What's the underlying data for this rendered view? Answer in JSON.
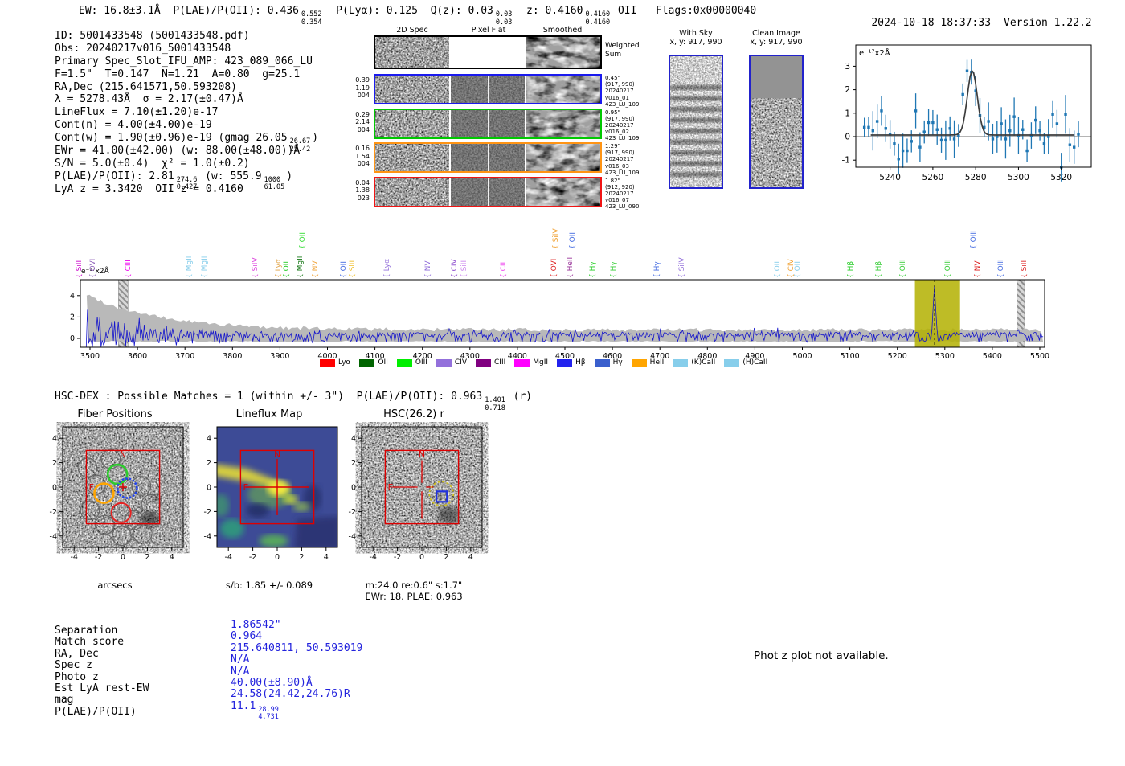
{
  "meta": {
    "timestamp": "2024-10-18 18:37:33",
    "version": "Version 1.22.2"
  },
  "header": {
    "segments": [
      {
        "t": "EW: 16.8±3.1Å  P(LAE)/P(OII): 0.436"
      },
      {
        "frac": [
          "0.552",
          "0.354"
        ]
      },
      {
        "t": "  P(Lyα): 0.125  Q(z): 0.03"
      },
      {
        "frac": [
          "0.03",
          "0.03"
        ]
      },
      {
        "t": "  z: 0.4160"
      },
      {
        "frac": [
          "0.4160",
          "0.4160"
        ]
      },
      {
        "t": " OII   Flags:0x00000040"
      }
    ]
  },
  "info_lines": [
    [
      {
        "t": "ID: 5001433548 (5001433548.pdf)"
      }
    ],
    [
      {
        "t": "Obs: 20240217v016_5001433548"
      }
    ],
    [
      {
        "t": "Primary Spec_Slot_IFU_AMP: 423_089_066_LU"
      }
    ],
    [
      {
        "t": "F=1.5\"  T=0.147  N=1.21  A=0.80  g=25.1"
      }
    ],
    [
      {
        "t": "RA,Dec (215.641571,50.593208)"
      }
    ],
    [
      {
        "t": "λ = 5278.43Å  σ = 2.17(±0.47)Å"
      }
    ],
    [
      {
        "t": "LineFlux = 7.10(±1.20)e-17"
      }
    ],
    [
      {
        "t": "Cont(n) = 4.00(±4.00)e-19"
      }
    ],
    [
      {
        "t": "Cont(w) = 1.90(±0.96)e-19 (gmag 26.05"
      },
      {
        "frac": [
          "26.67",
          "25.42"
        ]
      },
      {
        "t": ")"
      }
    ],
    [
      {
        "t": "EWr = 41.00(±42.00) (w: 88.00(±48.00))Å"
      }
    ],
    [
      {
        "t": "S/N = 5.0(±0.4)  χ² = 1.0(±0.2)"
      }
    ],
    [
      {
        "t": "P(LAE)/P(OII): 2.81"
      },
      {
        "frac": [
          "274.6",
          "0.427"
        ]
      },
      {
        "t": " (w: 555.9"
      },
      {
        "frac": [
          "1000",
          "61.05"
        ]
      },
      {
        "t": ")"
      }
    ],
    [
      {
        "t": "LyA z = 3.3420  OII z = 0.4160"
      }
    ]
  ],
  "cutouts_2d": {
    "col_headers": [
      "2D Spec",
      "Pixel Flat",
      "Smoothed"
    ],
    "rows": [
      {
        "border": "#000000",
        "left": [],
        "right": [
          "Weighted",
          "Sum"
        ],
        "big_right": true
      },
      {
        "border": "#1a1aee",
        "left": [
          "0.39",
          "1.19",
          "004"
        ],
        "right": [
          "0.45\"",
          "(917, 990)",
          "20240217",
          "v016_01",
          "423_LU_109"
        ]
      },
      {
        "border": "#00c800",
        "left": [
          "0.29",
          "2.14",
          "004"
        ],
        "right": [
          "0.95\"",
          "(917, 990)",
          "20240217",
          "v016_02",
          "423_LU_109"
        ]
      },
      {
        "border": "#ff9414",
        "left": [
          "0.16",
          "1.54",
          "004"
        ],
        "right": [
          "1.29\"",
          "(917, 990)",
          "20240217",
          "v016_03",
          "423_LU_109"
        ]
      },
      {
        "border": "#f01414",
        "left": [
          "0.04",
          "1.38",
          "023"
        ],
        "right": [
          "1.82\"",
          "(912, 920)",
          "20240217",
          "v016_07",
          "423_LU_090"
        ]
      }
    ]
  },
  "sky_cutouts": {
    "with_sky": {
      "title": "With Sky",
      "coords": "x, y: 917, 990"
    },
    "clean": {
      "title": "Clean Image",
      "coords": "x, y: 917, 990"
    },
    "border_color": "#2222cc"
  },
  "hsc_line": {
    "segments": [
      {
        "t": "HSC-DEX : Possible Matches = 1 (within +/- 3\")  P(LAE)/P(OII): 0.963"
      },
      {
        "frac": [
          "1.401",
          "0.718"
        ]
      },
      {
        "t": " (r)"
      }
    ]
  },
  "panels": {
    "fiber": {
      "title": "Fiber Positions",
      "xlabel": "arcsecs",
      "ticks": [
        -4,
        -2,
        0,
        2,
        4
      ],
      "north": "N",
      "east": "E"
    },
    "lineflux": {
      "title": "Lineflux Map",
      "caption": "s/b: 1.85 +/- 0.089",
      "ticks": [
        -4,
        -2,
        0,
        2,
        4
      ],
      "north": "N",
      "east": "E"
    },
    "hsc": {
      "title": "HSC(26.2) r",
      "caption1": "m:24.0  re:0.6\"  s:1.7\"",
      "caption2": "EWr: 18. PLAE: 0.963",
      "ticks": [
        -4,
        -2,
        0,
        2,
        4
      ],
      "north": "N",
      "east": "E"
    }
  },
  "match_table": {
    "value_color": "#2222dd",
    "rows": [
      {
        "label": "Separation",
        "value": [
          {
            "t": "1.86542\""
          }
        ]
      },
      {
        "label": "Match score",
        "value": [
          {
            "t": "0.964"
          }
        ]
      },
      {
        "label": "RA, Dec",
        "value": [
          {
            "t": "215.640811, 50.593019"
          }
        ]
      },
      {
        "label": "Spec z",
        "value": [
          {
            "t": "N/A"
          }
        ]
      },
      {
        "label": "Photo z",
        "value": [
          {
            "t": "N/A"
          }
        ]
      },
      {
        "label": "Est LyA rest-EW",
        "value": [
          {
            "t": "40.00(±8.90)Å"
          }
        ]
      },
      {
        "label": "mag",
        "value": [
          {
            "t": "24.58(24.42,24.76)R"
          }
        ]
      },
      {
        "label": "P(LAE)/P(OII)",
        "value": [
          {
            "t": "11.1"
          },
          {
            "frac": [
              "28.99",
              "4.731"
            ]
          }
        ]
      }
    ]
  },
  "photz_message": "Phot z plot not available.",
  "chart_data": [
    {
      "id": "line_fit_zoom",
      "type": "scatter",
      "corner_label": "e⁻¹⁷x2Å",
      "xlim": [
        5224,
        5334
      ],
      "ylim": [
        -1.4,
        3.9
      ],
      "xticks": [
        5240,
        5260,
        5280,
        5300,
        5320
      ],
      "yticks": [
        -1,
        0,
        1,
        2,
        3
      ],
      "x_start": 5228,
      "x_step": 2,
      "y": [
        0.4,
        0.4,
        0.25,
        0.65,
        1.1,
        0.35,
        0.1,
        -0.3,
        -0.95,
        -0.6,
        -0.6,
        -0.2,
        1.1,
        -0.45,
        0.2,
        0.6,
        0.6,
        0.3,
        -0.15,
        -0.15,
        0.35,
        -0.1,
        0.05,
        1.8,
        2.8,
        2.75,
        1.95,
        0.9,
        0.4,
        0.65,
        -0.1,
        0.0,
        0.55,
        -0.1,
        0.25,
        0.85,
        0.05,
        0.3,
        -0.6,
        0.05,
        0.7,
        0.25,
        -0.3,
        0.0,
        0.95,
        0.55,
        -1.3,
        0.95,
        -0.35,
        -0.45,
        0.1
      ],
      "yerr_range": [
        0.4,
        0.85
      ],
      "fit": {
        "type": "gaussian",
        "center": 5278.43,
        "sigma": 2.3,
        "peak": 2.75,
        "baseline": 0.07
      },
      "point_color": "#1f77b4",
      "fit_color": "#3c3c3c",
      "zero_line_color": "#888888"
    },
    {
      "id": "full_spectrum",
      "type": "line",
      "corner_label": "e⁻¹⁷x2Å",
      "xlim": [
        3492,
        5508
      ],
      "ylim": [
        -0.85,
        5.5
      ],
      "xticks": [
        3500,
        3600,
        3700,
        3800,
        3900,
        4000,
        4100,
        4200,
        4300,
        4400,
        4500,
        4600,
        4700,
        4800,
        4900,
        5000,
        5100,
        5200,
        5300,
        5400,
        5500
      ],
      "yticks": [
        0,
        2,
        4
      ],
      "line_color": "#1515cc",
      "noise_band_color": "#b9b9b9",
      "emission_line": {
        "wavelength": 5278.43,
        "peak": 4.15
      },
      "highlight_band": {
        "start": 5237,
        "end": 5332,
        "color": "#b3b000",
        "dashed_line": 5278.43
      },
      "hatched_bands": [
        [
          3560,
          3580
        ],
        [
          5452,
          5468
        ]
      ],
      "noise_profile": {
        "left_amp": 3.7,
        "right_amp": 0.55,
        "mean": 0.3
      },
      "legend": [
        {
          "label": "Lyα",
          "color": "#ff0000"
        },
        {
          "label": "OII",
          "color": "#006400"
        },
        {
          "label": "OIII",
          "color": "#00ee00"
        },
        {
          "label": "CIV",
          "color": "#9370db"
        },
        {
          "label": "CIII",
          "color": "#800080"
        },
        {
          "label": "MgII",
          "color": "#ff00ff"
        },
        {
          "label": "Hβ",
          "color": "#2222ee"
        },
        {
          "label": "Hγ",
          "color": "#3a5fcd"
        },
        {
          "label": "HeII",
          "color": "#ffa500"
        },
        {
          "label": "(K)CaII",
          "color": "#87ceeb"
        },
        {
          "label": "(H)CaII",
          "color": "#87ceeb"
        }
      ],
      "line_labels": [
        {
          "wavelength": 3495,
          "label": "SiII",
          "color": "#cc00cc",
          "tier": "low"
        },
        {
          "wavelength": 3524,
          "label": "OVI",
          "color": "#9467bd",
          "tier": "low"
        },
        {
          "wavelength": 3598,
          "label": "CIII",
          "color": "#ee00ee",
          "tier": "low"
        },
        {
          "wavelength": 3727,
          "label": "MgII",
          "color": "#87ceeb",
          "tier": "low"
        },
        {
          "wavelength": 3759,
          "label": "MgII",
          "color": "#87ceeb",
          "tier": "low"
        },
        {
          "wavelength": 3865,
          "label": "SiIV",
          "color": "#dd44dd",
          "tier": "low"
        },
        {
          "wavelength": 3915,
          "label": "Lyα",
          "color": "#e0a040",
          "tier": "low"
        },
        {
          "wavelength": 3931,
          "label": "OII",
          "color": "#22cc22",
          "tier": "low"
        },
        {
          "wavelength": 3960,
          "label": "MgII",
          "color": "#1a7a1a",
          "tier": "low"
        },
        {
          "wavelength": 3965,
          "label": "OII",
          "color": "#33dd33",
          "tier": "high"
        },
        {
          "wavelength": 3992,
          "label": "NV",
          "color": "#f0a030",
          "tier": "low"
        },
        {
          "wavelength": 4052,
          "label": "OII",
          "color": "#4169e1",
          "tier": "low"
        },
        {
          "wavelength": 4070,
          "label": "SiII",
          "color": "#f0c030",
          "tier": "low"
        },
        {
          "wavelength": 4143,
          "label": "Lyα",
          "color": "#9370db",
          "tier": "low"
        },
        {
          "wavelength": 4229,
          "label": "NV",
          "color": "#9370db",
          "tier": "low"
        },
        {
          "wavelength": 4285,
          "label": "CIV",
          "color": "#8844cc",
          "tier": "low"
        },
        {
          "wavelength": 4305,
          "label": "SiII",
          "color": "#cc88ee",
          "tier": "low"
        },
        {
          "wavelength": 4388,
          "label": "CII",
          "color": "#ee44ee",
          "tier": "low"
        },
        {
          "wavelength": 4495,
          "label": "OVI",
          "color": "#dd2222",
          "tier": "low"
        },
        {
          "wavelength": 4498,
          "label": "SiIV",
          "color": "#f0a030",
          "tier": "high"
        },
        {
          "wavelength": 4529,
          "label": "HeII",
          "color": "#993399",
          "tier": "low"
        },
        {
          "wavelength": 4534,
          "label": "OII",
          "color": "#4169e1",
          "tier": "high"
        },
        {
          "wavelength": 4576,
          "label": "Hγ",
          "color": "#22cc22",
          "tier": "low"
        },
        {
          "wavelength": 4620,
          "label": "Hγ",
          "color": "#33cc33",
          "tier": "low"
        },
        {
          "wavelength": 4711,
          "label": "Hγ",
          "color": "#4169e1",
          "tier": "low"
        },
        {
          "wavelength": 4764,
          "label": "SiIV",
          "color": "#9370db",
          "tier": "low"
        },
        {
          "wavelength": 4965,
          "label": "OII",
          "color": "#87ceeb",
          "tier": "low"
        },
        {
          "wavelength": 4994,
          "label": "CIV",
          "color": "#f0a030",
          "tier": "low"
        },
        {
          "wavelength": 5008,
          "label": "OII",
          "color": "#87ceeb",
          "tier": "low"
        },
        {
          "wavelength": 5119,
          "label": "Hβ",
          "color": "#22cc22",
          "tier": "low"
        },
        {
          "wavelength": 5178,
          "label": "Hβ",
          "color": "#33cc33",
          "tier": "low"
        },
        {
          "wavelength": 5229,
          "label": "OIII",
          "color": "#33cc33",
          "tier": "low"
        },
        {
          "wavelength": 5324,
          "label": "OIII",
          "color": "#33cc33",
          "tier": "low"
        },
        {
          "wavelength": 5378,
          "label": "OIII",
          "color": "#4169e1",
          "tier": "high"
        },
        {
          "wavelength": 5386,
          "label": "NV",
          "color": "#dd2222",
          "tier": "low"
        },
        {
          "wavelength": 5436,
          "label": "OIII",
          "color": "#4169e1",
          "tier": "low"
        },
        {
          "wavelength": 5485,
          "label": "SiII",
          "color": "#dd2222",
          "tier": "low"
        }
      ]
    }
  ]
}
